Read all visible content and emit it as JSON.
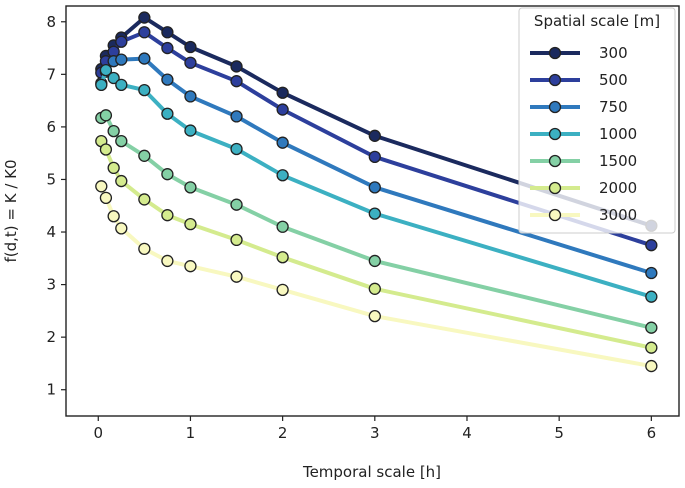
{
  "chart_data": {
    "type": "line",
    "title": "",
    "xlabel": "Temporal scale [h]",
    "ylabel": "f(d,t) = K / K0",
    "xlim": [
      -0.35,
      6.3
    ],
    "ylim": [
      0.5,
      8.3
    ],
    "xticks": [
      0,
      1,
      2,
      3,
      4,
      5,
      6
    ],
    "yticks": [
      1,
      2,
      3,
      4,
      5,
      6,
      7,
      8
    ],
    "xtick_labels": [
      "0",
      "1",
      "2",
      "3",
      "4",
      "5",
      "6"
    ],
    "ytick_labels": [
      "1",
      "2",
      "3",
      "4",
      "5",
      "6",
      "7",
      "8"
    ],
    "grid": false,
    "legend": {
      "title": "Spatial scale [m]",
      "position": "top-right"
    },
    "x": [
      0.033,
      0.083,
      0.167,
      0.25,
      0.5,
      0.75,
      1,
      1.5,
      2,
      3,
      6
    ],
    "series": [
      {
        "name": "300",
        "color": "#1b2a5e",
        "values": [
          7.1,
          7.35,
          7.55,
          7.7,
          8.08,
          7.8,
          7.52,
          7.15,
          6.65,
          5.83,
          4.12
        ]
      },
      {
        "name": "500",
        "color": "#2d3f9c",
        "values": [
          7.03,
          7.25,
          7.43,
          7.62,
          7.8,
          7.5,
          7.22,
          6.87,
          6.33,
          5.43,
          3.75
        ]
      },
      {
        "name": "750",
        "color": "#2f79bd",
        "values": [
          6.83,
          7.05,
          7.25,
          7.28,
          7.3,
          6.9,
          6.58,
          6.2,
          5.7,
          4.85,
          3.22
        ]
      },
      {
        "name": "1000",
        "color": "#3cb0c2",
        "values": [
          6.8,
          7.08,
          6.93,
          6.8,
          6.7,
          6.25,
          5.93,
          5.58,
          5.08,
          4.35,
          2.77
        ]
      },
      {
        "name": "1500",
        "color": "#84d0a5",
        "values": [
          6.17,
          6.22,
          5.92,
          5.73,
          5.45,
          5.1,
          4.85,
          4.52,
          4.1,
          3.45,
          2.18
        ]
      },
      {
        "name": "2000",
        "color": "#d4eb8e",
        "values": [
          5.73,
          5.57,
          5.22,
          4.97,
          4.62,
          4.32,
          4.15,
          3.85,
          3.52,
          2.92,
          1.8
        ]
      },
      {
        "name": "3000",
        "color": "#f8f8c0",
        "values": [
          4.87,
          4.65,
          4.3,
          4.07,
          3.68,
          3.45,
          3.35,
          3.15,
          2.9,
          2.4,
          1.45
        ]
      }
    ]
  }
}
